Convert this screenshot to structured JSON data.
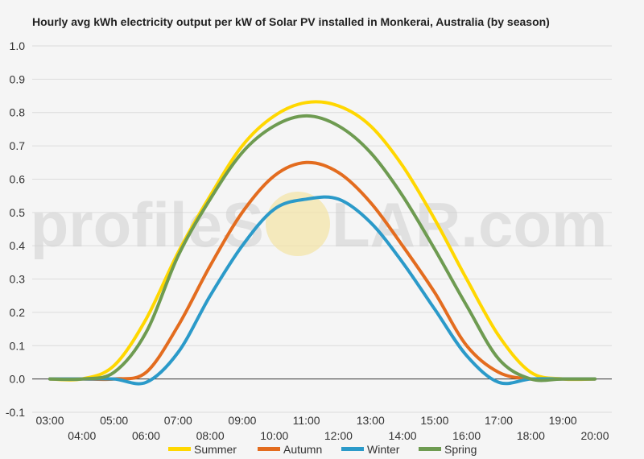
{
  "chart_data": {
    "type": "line",
    "title": "Hourly avg kWh electricity output per kW of Solar PV installed in Monkerai, Australia (by season)",
    "xlabel": "",
    "ylabel": "",
    "ylim": [
      -0.1,
      1.0
    ],
    "yticks": [
      "1.0",
      "0.9",
      "0.8",
      "0.7",
      "0.6",
      "0.5",
      "0.4",
      "0.3",
      "0.2",
      "0.1",
      "0.0",
      "-0.1"
    ],
    "ytick_values": [
      1.0,
      0.9,
      0.8,
      0.7,
      0.6,
      0.5,
      0.4,
      0.3,
      0.2,
      0.1,
      0.0,
      -0.1
    ],
    "x": [
      "03:00",
      "04:00",
      "05:00",
      "06:00",
      "07:00",
      "08:00",
      "09:00",
      "10:00",
      "11:00",
      "12:00",
      "13:00",
      "14:00",
      "15:00",
      "16:00",
      "17:00",
      "18:00",
      "19:00",
      "20:00"
    ],
    "grid": true,
    "legend_position": "bottom",
    "series": [
      {
        "name": "Summer",
        "color": "#FFD700",
        "values": [
          0,
          0,
          0.04,
          0.18,
          0.38,
          0.55,
          0.7,
          0.79,
          0.83,
          0.82,
          0.76,
          0.64,
          0.48,
          0.3,
          0.13,
          0.02,
          0,
          0
        ]
      },
      {
        "name": "Autumn",
        "color": "#E36C1F",
        "values": [
          0,
          0,
          0,
          0.02,
          0.16,
          0.34,
          0.5,
          0.61,
          0.65,
          0.62,
          0.53,
          0.4,
          0.26,
          0.1,
          0.02,
          0,
          0,
          0
        ]
      },
      {
        "name": "Winter",
        "color": "#2B9AC9",
        "values": [
          0,
          0,
          0,
          -0.01,
          0.08,
          0.25,
          0.4,
          0.51,
          0.54,
          0.54,
          0.47,
          0.35,
          0.21,
          0.07,
          -0.01,
          0,
          0,
          0
        ]
      },
      {
        "name": "Spring",
        "color": "#6E9B51",
        "values": [
          0,
          0,
          0.02,
          0.14,
          0.37,
          0.54,
          0.68,
          0.76,
          0.79,
          0.76,
          0.68,
          0.55,
          0.39,
          0.22,
          0.06,
          0,
          0,
          0
        ]
      }
    ]
  },
  "watermark": {
    "text_left": "profileS",
    "text_right": "LAR.com",
    "sun_color": "#f3e4a8"
  }
}
